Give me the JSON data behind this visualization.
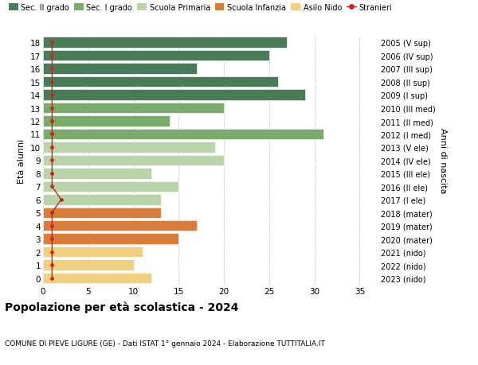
{
  "ages": [
    18,
    17,
    16,
    15,
    14,
    13,
    12,
    11,
    10,
    9,
    8,
    7,
    6,
    5,
    4,
    3,
    2,
    1,
    0
  ],
  "right_labels": [
    "2005 (V sup)",
    "2006 (IV sup)",
    "2007 (III sup)",
    "2008 (II sup)",
    "2009 (I sup)",
    "2010 (III med)",
    "2011 (II med)",
    "2012 (I med)",
    "2013 (V ele)",
    "2014 (IV ele)",
    "2015 (III ele)",
    "2016 (II ele)",
    "2017 (I ele)",
    "2018 (mater)",
    "2019 (mater)",
    "2020 (mater)",
    "2021 (nido)",
    "2022 (nido)",
    "2023 (nido)"
  ],
  "bar_values": [
    27,
    25,
    17,
    26,
    29,
    20,
    14,
    31,
    19,
    20,
    12,
    15,
    13,
    13,
    17,
    15,
    11,
    10,
    12
  ],
  "bar_colors": [
    "#4a7c59",
    "#4a7c59",
    "#4a7c59",
    "#4a7c59",
    "#4a7c59",
    "#7aab6a",
    "#7aab6a",
    "#7aab6a",
    "#b8d4a8",
    "#b8d4a8",
    "#b8d4a8",
    "#b8d4a8",
    "#b8d4a8",
    "#d97c3a",
    "#d97c3a",
    "#d97c3a",
    "#f0d080",
    "#f0d080",
    "#f0d080"
  ],
  "stranieri_x": [
    1,
    1,
    1,
    1,
    1,
    1,
    1,
    1,
    1,
    1,
    1,
    1,
    2,
    1,
    1,
    1,
    1,
    1,
    1
  ],
  "legend_labels": [
    "Sec. II grado",
    "Sec. I grado",
    "Scuola Primaria",
    "Scuola Infanzia",
    "Asilo Nido",
    "Stranieri"
  ],
  "legend_colors": [
    "#4a7c59",
    "#7aab6a",
    "#b8d4a8",
    "#d97c3a",
    "#f0d080",
    "#cc2222"
  ],
  "ylabel": "Età alunni",
  "ylabel_right": "Anni di nascita",
  "title": "Popolazione per età scolastica - 2024",
  "subtitle": "COMUNE DI PIEVE LIGURE (GE) - Dati ISTAT 1° gennaio 2024 - Elaborazione TUTTITALIA.IT",
  "xlim": [
    0,
    37
  ],
  "xticks": [
    0,
    5,
    10,
    15,
    20,
    25,
    30,
    35
  ],
  "background_color": "#ffffff",
  "grid_color": "#cccccc"
}
